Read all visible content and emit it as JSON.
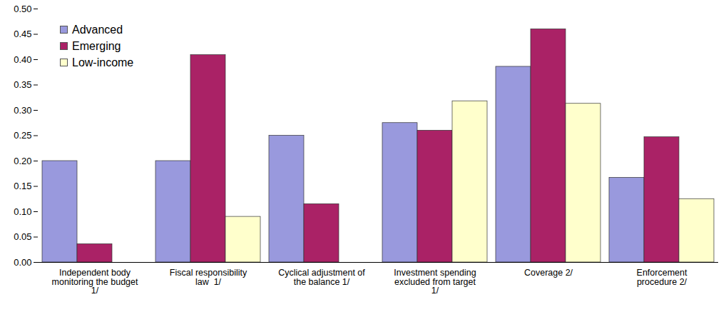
{
  "chart_data": {
    "type": "bar",
    "categories": [
      "Independent body\nmonitoring the budget\n1/",
      "Fiscal responsibility\nlaw  1/",
      "Cyclical adjustment of\nthe balance 1/",
      "Investment spending\nexcluded from target\n1/",
      "Coverage 2/",
      "Enforcement\nprocedure 2/"
    ],
    "series": [
      {
        "name": "Advanced",
        "color": "#9999dd",
        "values": [
          0.2,
          0.2,
          0.25,
          0.275,
          0.386,
          0.167
        ]
      },
      {
        "name": "Emerging",
        "color": "#aa2266",
        "values": [
          0.036,
          0.409,
          0.115,
          0.26,
          0.46,
          0.247
        ]
      },
      {
        "name": "Low-income",
        "color": "#ffffcc",
        "values": [
          0,
          0.09,
          0,
          0.318,
          0.313,
          0.125
        ]
      }
    ],
    "ylim": [
      0,
      0.5
    ],
    "yticks": [
      {
        "value": 0,
        "label": "0.00"
      },
      {
        "value": 0.05,
        "label": "0.05"
      },
      {
        "value": 0.1,
        "label": "0.10"
      },
      {
        "value": 0.15,
        "label": "0.15"
      },
      {
        "value": 0.2,
        "label": "0.20"
      },
      {
        "value": 0.25,
        "label": "0.25"
      },
      {
        "value": 0.3,
        "label": "0.30"
      },
      {
        "value": 0.35,
        "label": "0.35"
      },
      {
        "value": 0.4,
        "label": "0.40"
      },
      {
        "value": 0.45,
        "label": "0.45"
      },
      {
        "value": 0.5,
        "label": "0.50"
      }
    ],
    "grid": false,
    "legend": "top-left"
  }
}
